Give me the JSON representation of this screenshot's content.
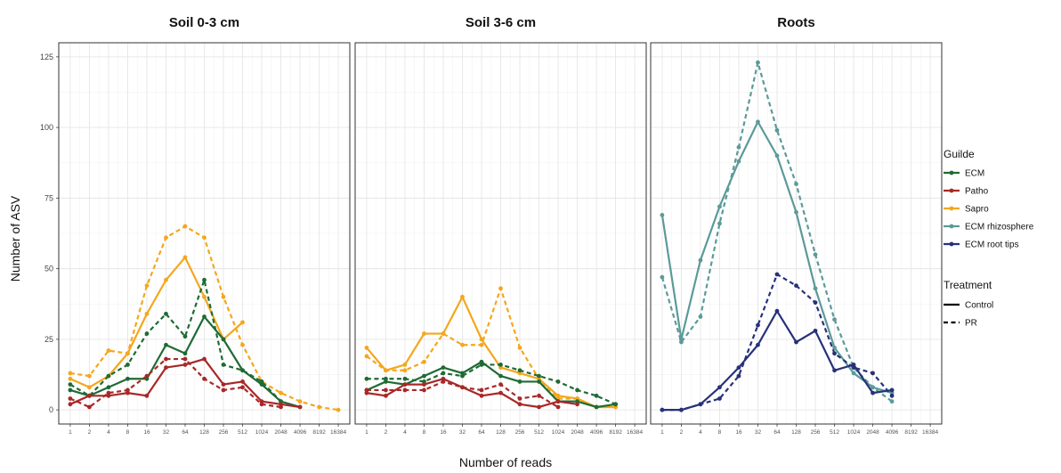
{
  "chart_data": {
    "type": "line",
    "xlabel": "Number of reads",
    "ylabel": "Number of ASV",
    "x_scale": "log2",
    "x_ticks": [
      1,
      2,
      4,
      8,
      16,
      32,
      64,
      128,
      256,
      512,
      1024,
      2048,
      4096,
      8192,
      16384
    ],
    "x_tick_labels": [
      "1",
      "2",
      "4",
      "8",
      "16",
      "32",
      "64",
      "128",
      "256",
      "512",
      "1024",
      "2048",
      "4096",
      "8192",
      "16384"
    ],
    "ylim": [
      -5,
      130
    ],
    "y_ticks": [
      0,
      25,
      50,
      75,
      100,
      125
    ],
    "y_tick_labels": [
      "0",
      "25",
      "50",
      "75",
      "100",
      "125"
    ],
    "grid": true,
    "legend": {
      "placement": "right",
      "guild_title": "Guilde",
      "guild_entries": [
        {
          "label": "ECM",
          "color": "#1e6b34"
        },
        {
          "label": "Patho",
          "color": "#a82828"
        },
        {
          "label": "Sapro",
          "color": "#f4a71c"
        },
        {
          "label": "ECM  rhizosphere",
          "color": "#5b9a98"
        },
        {
          "label": "ECM root tips",
          "color": "#27317a"
        }
      ],
      "treatment_title": "Treatment",
      "treatment_entries": [
        {
          "label": "Control",
          "linetype": "solid"
        },
        {
          "label": "PR",
          "linetype": "dashed"
        }
      ]
    },
    "panels": [
      {
        "title": "Soil 0-3 cm",
        "series": [
          {
            "guild": "Sapro",
            "treatment": "Control",
            "color": "#f4a71c",
            "x": [
              1,
              2,
              4,
              8,
              16,
              32,
              64,
              128,
              256,
              512
            ],
            "y": [
              11,
              8,
              12,
              20,
              34,
              46,
              54,
              40,
              25,
              31
            ]
          },
          {
            "guild": "Sapro",
            "treatment": "PR",
            "color": "#f4a71c",
            "x": [
              1,
              2,
              4,
              8,
              16,
              32,
              64,
              128,
              256,
              512,
              1024,
              2048,
              4096,
              8192,
              16384
            ],
            "y": [
              13,
              12,
              21,
              20,
              44,
              61,
              65,
              61,
              40,
              23,
              10,
              6,
              3,
              1,
              0
            ]
          },
          {
            "guild": "ECM",
            "treatment": "Control",
            "color": "#1e6b34",
            "x": [
              1,
              2,
              4,
              8,
              16,
              32,
              64,
              128,
              256,
              512,
              1024,
              2048,
              4096
            ],
            "y": [
              7,
              5,
              8,
              11,
              11,
              23,
              20,
              33,
              25,
              14,
              9,
              3,
              1
            ]
          },
          {
            "guild": "ECM",
            "treatment": "PR",
            "color": "#1e6b34",
            "x": [
              1,
              2,
              4,
              8,
              16,
              32,
              64,
              128,
              256,
              512,
              1024,
              2048
            ],
            "y": [
              9,
              5,
              12,
              16,
              27,
              34,
              26,
              46,
              16,
              14,
              10,
              3
            ]
          },
          {
            "guild": "Patho",
            "treatment": "Control",
            "color": "#a82828",
            "x": [
              1,
              2,
              4,
              8,
              16,
              32,
              64,
              128,
              256,
              512,
              1024,
              2048,
              4096
            ],
            "y": [
              2,
              5,
              5,
              6,
              5,
              15,
              16,
              18,
              9,
              10,
              3,
              2,
              1
            ]
          },
          {
            "guild": "Patho",
            "treatment": "PR",
            "color": "#a82828",
            "x": [
              1,
              2,
              4,
              8,
              16,
              32,
              64,
              128,
              256,
              512,
              1024,
              2048
            ],
            "y": [
              4,
              1,
              6,
              7,
              12,
              18,
              18,
              11,
              7,
              8,
              2,
              1
            ]
          }
        ]
      },
      {
        "title": "Soil 3-6 cm",
        "series": [
          {
            "guild": "Sapro",
            "treatment": "Control",
            "color": "#f4a71c",
            "x": [
              1,
              2,
              4,
              8,
              16,
              32,
              64,
              128,
              256,
              512,
              1024,
              2048,
              4096,
              8192
            ],
            "y": [
              22,
              14,
              16,
              27,
              27,
              40,
              25,
              15,
              13,
              11,
              5,
              4,
              1,
              1
            ]
          },
          {
            "guild": "Sapro",
            "treatment": "PR",
            "color": "#f4a71c",
            "x": [
              1,
              2,
              4,
              8,
              16,
              32,
              64,
              128,
              256,
              512,
              1024,
              2048,
              4096,
              8192
            ],
            "y": [
              19,
              14,
              14,
              17,
              27,
              23,
              23,
              43,
              22,
              11,
              4,
              4,
              1,
              1
            ]
          },
          {
            "guild": "ECM",
            "treatment": "Control",
            "color": "#1e6b34",
            "x": [
              1,
              2,
              4,
              8,
              16,
              32,
              64,
              128,
              256,
              512,
              1024,
              2048,
              4096,
              8192
            ],
            "y": [
              7,
              10,
              9,
              12,
              15,
              13,
              17,
              12,
              10,
              10,
              3,
              3,
              1,
              2
            ]
          },
          {
            "guild": "ECM",
            "treatment": "PR",
            "color": "#1e6b34",
            "x": [
              1,
              2,
              4,
              8,
              16,
              32,
              64,
              128,
              256,
              512,
              1024,
              2048,
              4096,
              8192
            ],
            "y": [
              11,
              11,
              11,
              10,
              13,
              12,
              16,
              16,
              14,
              12,
              10,
              7,
              5,
              2
            ]
          },
          {
            "guild": "Patho",
            "treatment": "Control",
            "color": "#a82828",
            "x": [
              1,
              2,
              4,
              8,
              16,
              32,
              64,
              128,
              256,
              512,
              1024,
              2048
            ],
            "y": [
              6,
              5,
              9,
              9,
              11,
              8,
              5,
              6,
              2,
              1,
              3,
              2
            ]
          },
          {
            "guild": "Patho",
            "treatment": "PR",
            "color": "#a82828",
            "x": [
              1,
              2,
              4,
              8,
              16,
              32,
              64,
              128,
              256,
              512,
              1024
            ],
            "y": [
              7,
              7,
              7,
              7,
              10,
              8,
              7,
              9,
              4,
              5,
              1
            ]
          }
        ]
      },
      {
        "title": "Roots",
        "series": [
          {
            "guild": "ECM  rhizosphere",
            "treatment": "Control",
            "color": "#5b9a98",
            "x": [
              1,
              2,
              4,
              8,
              16,
              32,
              64,
              128,
              256,
              512,
              1024,
              2048,
              4096
            ],
            "y": [
              69,
              25,
              53,
              72,
              88,
              102,
              90,
              70,
              43,
              22,
              13,
              8,
              6
            ]
          },
          {
            "guild": "ECM  rhizosphere",
            "treatment": "PR",
            "color": "#5b9a98",
            "x": [
              1,
              2,
              4,
              8,
              16,
              32,
              64,
              128,
              256,
              512,
              1024,
              2048,
              4096
            ],
            "y": [
              47,
              24,
              33,
              66,
              93,
              123,
              99,
              80,
              55,
              32,
              15,
              8,
              3
            ]
          },
          {
            "guild": "ECM root tips",
            "treatment": "Control",
            "color": "#27317a",
            "x": [
              1,
              2,
              4,
              8,
              16,
              32,
              64,
              128,
              256,
              512,
              1024,
              2048,
              4096
            ],
            "y": [
              0,
              0,
              2,
              8,
              15,
              23,
              35,
              24,
              28,
              14,
              16,
              6,
              7
            ]
          },
          {
            "guild": "ECM root tips",
            "treatment": "PR",
            "color": "#27317a",
            "x": [
              1,
              2,
              4,
              8,
              16,
              32,
              64,
              128,
              256,
              512,
              1024,
              2048,
              4096
            ],
            "y": [
              0,
              0,
              2,
              4,
              12,
              30,
              48,
              44,
              38,
              20,
              15,
              13,
              5
            ]
          }
        ]
      }
    ]
  }
}
